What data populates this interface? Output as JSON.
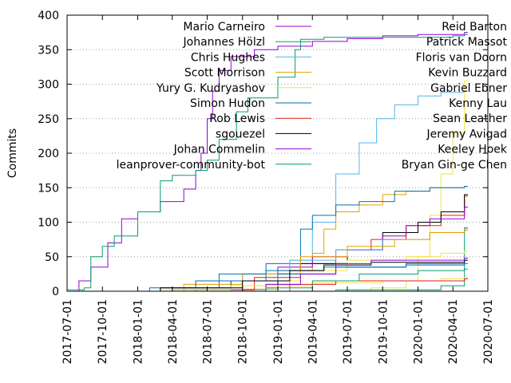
{
  "chart_data": {
    "type": "line",
    "title": "",
    "xlabel": "",
    "ylabel": "Commits",
    "xlim": [
      "2017-07-01",
      "2020-07-01"
    ],
    "ylim": [
      0,
      400
    ],
    "x_ticks": [
      "2017-07-01",
      "2017-10-01",
      "2018-01-01",
      "2018-04-01",
      "2018-07-01",
      "2018-10-01",
      "2019-01-01",
      "2019-04-01",
      "2019-07-01",
      "2019-10-01",
      "2020-01-01",
      "2020-04-01",
      "2020-07-01"
    ],
    "y_ticks": [
      0,
      50,
      100,
      150,
      200,
      250,
      300,
      350,
      400
    ],
    "grid": "horizontal dotted at 50-unit intervals",
    "legend_position": "top (two columns inside plot)",
    "series": [
      {
        "name": "Mario Carneiro",
        "color": "#9400d3",
        "points": [
          [
            "2017-07-24",
            0
          ],
          [
            "2017-08-01",
            15
          ],
          [
            "2017-09-01",
            35
          ],
          [
            "2017-10-15",
            70
          ],
          [
            "2017-11-20",
            105
          ],
          [
            "2018-01-01",
            115
          ],
          [
            "2018-03-01",
            130
          ],
          [
            "2018-05-01",
            148
          ],
          [
            "2018-06-01",
            175
          ],
          [
            "2018-06-15",
            200
          ],
          [
            "2018-07-01",
            250
          ],
          [
            "2018-07-15",
            290
          ],
          [
            "2018-08-01",
            320
          ],
          [
            "2018-09-01",
            340
          ],
          [
            "2018-11-01",
            350
          ],
          [
            "2019-01-01",
            355
          ],
          [
            "2019-04-01",
            362
          ],
          [
            "2019-07-01",
            366
          ],
          [
            "2019-10-01",
            370
          ],
          [
            "2020-01-01",
            372
          ],
          [
            "2020-05-01",
            375
          ]
        ]
      },
      {
        "name": "Johannes Hölzl",
        "color": "#009e73",
        "points": [
          [
            "2017-07-01",
            2
          ],
          [
            "2017-08-15",
            5
          ],
          [
            "2017-09-01",
            50
          ],
          [
            "2017-10-01",
            65
          ],
          [
            "2017-11-01",
            80
          ],
          [
            "2018-01-01",
            115
          ],
          [
            "2018-03-01",
            160
          ],
          [
            "2018-04-01",
            168
          ],
          [
            "2018-06-01",
            175
          ],
          [
            "2018-07-01",
            190
          ],
          [
            "2018-08-01",
            220
          ],
          [
            "2018-09-15",
            260
          ],
          [
            "2018-10-15",
            280
          ],
          [
            "2019-01-01",
            310
          ],
          [
            "2019-02-15",
            350
          ],
          [
            "2019-03-01",
            365
          ],
          [
            "2019-05-01",
            368
          ],
          [
            "2020-04-01",
            370
          ],
          [
            "2020-05-01",
            372
          ]
        ]
      },
      {
        "name": "Chris Hughes",
        "color": "#56b4e9",
        "points": [
          [
            "2017-07-01",
            0
          ],
          [
            "2018-09-01",
            2
          ],
          [
            "2018-12-01",
            10
          ],
          [
            "2019-02-01",
            45
          ],
          [
            "2019-04-01",
            100
          ],
          [
            "2019-06-01",
            170
          ],
          [
            "2019-08-01",
            215
          ],
          [
            "2019-09-15",
            250
          ],
          [
            "2019-11-01",
            270
          ],
          [
            "2020-01-01",
            283
          ],
          [
            "2020-03-01",
            288
          ],
          [
            "2020-05-01",
            290
          ]
        ]
      },
      {
        "name": "Scott Morrison",
        "color": "#e69f00",
        "points": [
          [
            "2017-07-01",
            0
          ],
          [
            "2018-10-01",
            3
          ],
          [
            "2019-01-01",
            30
          ],
          [
            "2019-04-01",
            55
          ],
          [
            "2019-05-01",
            90
          ],
          [
            "2019-06-01",
            115
          ],
          [
            "2019-08-01",
            125
          ],
          [
            "2019-10-01",
            140
          ],
          [
            "2019-12-01",
            145
          ],
          [
            "2020-02-01",
            150
          ],
          [
            "2020-05-01",
            152
          ]
        ]
      },
      {
        "name": "Yury G. Kudryashov",
        "color": "#f0e442",
        "points": [
          [
            "2019-06-01",
            0
          ],
          [
            "2019-09-01",
            5
          ],
          [
            "2019-12-01",
            15
          ],
          [
            "2020-01-01",
            50
          ],
          [
            "2020-02-01",
            110
          ],
          [
            "2020-03-01",
            170
          ],
          [
            "2020-04-01",
            230
          ],
          [
            "2020-05-01",
            305
          ]
        ]
      },
      {
        "name": "Simon Hudon",
        "color": "#0072b2",
        "points": [
          [
            "2017-07-01",
            0
          ],
          [
            "2018-04-01",
            5
          ],
          [
            "2018-08-01",
            15
          ],
          [
            "2018-12-01",
            40
          ],
          [
            "2019-03-01",
            90
          ],
          [
            "2019-04-01",
            110
          ],
          [
            "2019-06-01",
            125
          ],
          [
            "2019-08-01",
            130
          ],
          [
            "2019-11-01",
            145
          ],
          [
            "2020-02-01",
            150
          ],
          [
            "2020-05-01",
            152
          ]
        ]
      },
      {
        "name": "Rob Lewis",
        "color": "#e51e10",
        "points": [
          [
            "2017-07-01",
            0
          ],
          [
            "2018-06-01",
            2
          ],
          [
            "2018-11-01",
            20
          ],
          [
            "2019-03-01",
            40
          ],
          [
            "2019-06-01",
            60
          ],
          [
            "2019-09-01",
            75
          ],
          [
            "2019-12-01",
            95
          ],
          [
            "2020-03-01",
            110
          ],
          [
            "2020-05-01",
            138
          ]
        ]
      },
      {
        "name": "sgouezel",
        "color": "#000000",
        "points": [
          [
            "2018-10-01",
            0
          ],
          [
            "2019-01-01",
            25
          ],
          [
            "2019-03-01",
            40
          ],
          [
            "2019-07-01",
            60
          ],
          [
            "2019-10-01",
            85
          ],
          [
            "2020-01-01",
            100
          ],
          [
            "2020-03-01",
            115
          ],
          [
            "2020-05-01",
            140
          ]
        ]
      },
      {
        "name": "Johan Commelin",
        "color": "#9400d3",
        "points": [
          [
            "2017-07-01",
            0
          ],
          [
            "2018-04-01",
            2
          ],
          [
            "2018-09-01",
            15
          ],
          [
            "2019-01-01",
            35
          ],
          [
            "2019-04-01",
            50
          ],
          [
            "2019-07-01",
            60
          ],
          [
            "2019-10-01",
            80
          ],
          [
            "2019-12-01",
            95
          ],
          [
            "2020-02-01",
            105
          ],
          [
            "2020-05-01",
            122
          ]
        ]
      },
      {
        "name": "leanprover-community-bot",
        "color": "#009e73",
        "points": [
          [
            "2017-07-01",
            0
          ],
          [
            "2019-06-01",
            2
          ],
          [
            "2020-03-01",
            8
          ],
          [
            "2020-05-01",
            92
          ]
        ]
      },
      {
        "name": "Reid Barton",
        "color": "#56b4e9",
        "points": [
          [
            "2017-07-01",
            0
          ],
          [
            "2018-05-01",
            5
          ],
          [
            "2018-10-01",
            25
          ],
          [
            "2019-02-01",
            45
          ],
          [
            "2019-06-01",
            60
          ],
          [
            "2019-10-01",
            75
          ],
          [
            "2020-02-01",
            85
          ],
          [
            "2020-05-01",
            90
          ]
        ]
      },
      {
        "name": "Patrick Massot",
        "color": "#e69f00",
        "points": [
          [
            "2017-07-01",
            0
          ],
          [
            "2018-05-01",
            10
          ],
          [
            "2018-10-01",
            25
          ],
          [
            "2019-03-01",
            50
          ],
          [
            "2019-07-01",
            65
          ],
          [
            "2019-11-01",
            75
          ],
          [
            "2020-02-01",
            85
          ],
          [
            "2020-05-01",
            88
          ]
        ]
      },
      {
        "name": "Floris van Doorn",
        "color": "#f0e442",
        "points": [
          [
            "2017-07-01",
            0
          ],
          [
            "2018-04-01",
            5
          ],
          [
            "2018-09-01",
            15
          ],
          [
            "2019-03-01",
            30
          ],
          [
            "2019-07-01",
            45
          ],
          [
            "2019-12-01",
            50
          ],
          [
            "2020-03-01",
            55
          ],
          [
            "2020-05-01",
            58
          ]
        ]
      },
      {
        "name": "Kevin Buzzard",
        "color": "#0072b2",
        "points": [
          [
            "2017-07-01",
            0
          ],
          [
            "2018-03-01",
            5
          ],
          [
            "2018-09-01",
            15
          ],
          [
            "2019-01-01",
            25
          ],
          [
            "2019-06-01",
            35
          ],
          [
            "2019-12-01",
            40
          ],
          [
            "2020-05-01",
            45
          ]
        ]
      },
      {
        "name": "Gabriel Ebner",
        "color": "#f0e442",
        "points": [
          [
            "2017-07-01",
            0
          ],
          [
            "2018-03-01",
            2
          ],
          [
            "2018-09-01",
            8
          ],
          [
            "2019-04-01",
            12
          ],
          [
            "2019-10-01",
            15
          ],
          [
            "2020-03-01",
            18
          ],
          [
            "2020-05-01",
            20
          ]
        ]
      },
      {
        "name": "Kenny Lau",
        "color": "#0072b2",
        "points": [
          [
            "2017-07-01",
            0
          ],
          [
            "2018-02-01",
            5
          ],
          [
            "2018-06-01",
            15
          ],
          [
            "2018-08-01",
            25
          ],
          [
            "2018-12-01",
            30
          ],
          [
            "2019-05-01",
            35
          ],
          [
            "2019-12-01",
            38
          ],
          [
            "2020-05-01",
            40
          ]
        ]
      },
      {
        "name": "Sean Leather",
        "color": "#e51e10",
        "points": [
          [
            "2018-10-01",
            0
          ],
          [
            "2019-02-01",
            10
          ],
          [
            "2019-06-01",
            15
          ],
          [
            "2020-05-01",
            18
          ]
        ]
      },
      {
        "name": "Jeremy Avigad",
        "color": "#000000",
        "points": [
          [
            "2017-07-01",
            0
          ],
          [
            "2018-03-01",
            5
          ],
          [
            "2018-10-01",
            15
          ],
          [
            "2019-02-01",
            30
          ],
          [
            "2019-05-01",
            38
          ],
          [
            "2019-09-01",
            42
          ],
          [
            "2020-05-01",
            45
          ]
        ]
      },
      {
        "name": "Keeley Hoek",
        "color": "#9400d3",
        "points": [
          [
            "2018-09-01",
            0
          ],
          [
            "2018-12-01",
            10
          ],
          [
            "2019-03-01",
            25
          ],
          [
            "2019-06-01",
            40
          ],
          [
            "2019-09-01",
            45
          ],
          [
            "2020-05-01",
            48
          ]
        ]
      },
      {
        "name": "Bryan Gin-ge Chen",
        "color": "#009e73",
        "points": [
          [
            "2018-06-01",
            0
          ],
          [
            "2018-12-01",
            5
          ],
          [
            "2019-04-01",
            15
          ],
          [
            "2019-08-01",
            25
          ],
          [
            "2020-01-01",
            30
          ],
          [
            "2020-05-01",
            32
          ]
        ]
      }
    ]
  }
}
